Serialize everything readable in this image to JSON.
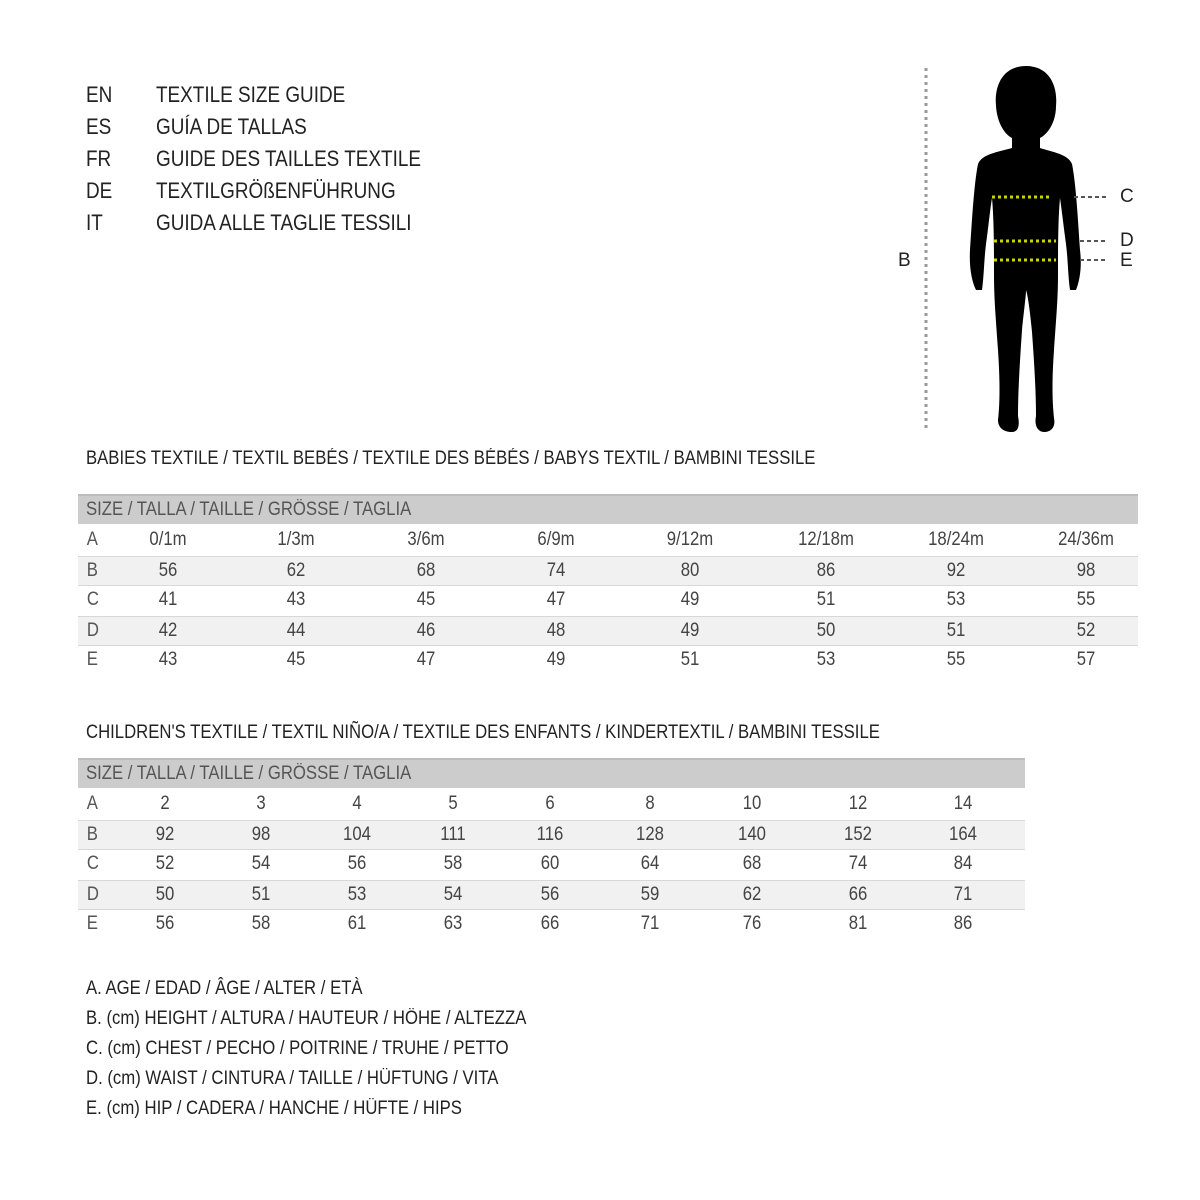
{
  "title_block": [
    {
      "code": "EN",
      "text": "TEXTILE SIZE GUIDE"
    },
    {
      "code": "ES",
      "text": "GUÍA DE TALLAS"
    },
    {
      "code": "FR",
      "text": "GUIDE DES TAILLES TEXTILE"
    },
    {
      "code": "DE",
      "text": "TEXTILGRÖßENFÜHRUNG"
    },
    {
      "code": "IT",
      "text": "GUIDA ALLE TAGLIE TESSILI"
    }
  ],
  "figure": {
    "labels": {
      "b": "B",
      "c": "C",
      "d": "D",
      "e": "E"
    },
    "measure_line_color": "#c8d400"
  },
  "babies": {
    "heading": "BABIES TEXTILE / TEXTIL BEBÉS / TEXTILE DES BÉBÉS / BABYS TEXTIL  / BAMBINI TESSILE",
    "size_header": "SIZE / TALLA / TAILLE / GRÖSSE / TAGLIA",
    "rows": [
      {
        "label": "A",
        "values": [
          "0/1m",
          "1/3m",
          "3/6m",
          "6/9m",
          "9/12m",
          "12/18m",
          "18/24m",
          "24/36m"
        ]
      },
      {
        "label": "B",
        "values": [
          "56",
          "62",
          "68",
          "74",
          "80",
          "86",
          "92",
          "98"
        ]
      },
      {
        "label": "C",
        "values": [
          "41",
          "43",
          "45",
          "47",
          "49",
          "51",
          "53",
          "55"
        ]
      },
      {
        "label": "D",
        "values": [
          "42",
          "44",
          "46",
          "48",
          "49",
          "50",
          "51",
          "52"
        ]
      },
      {
        "label": "E",
        "values": [
          "43",
          "45",
          "47",
          "49",
          "51",
          "53",
          "55",
          "57"
        ]
      }
    ]
  },
  "children": {
    "heading": "CHILDREN'S TEXTILE / TEXTIL NIÑO/A / TEXTILE DES ENFANTS / KINDERTEXTIL / BAMBINI TESSILE",
    "size_header": "SIZE / TALLA / TAILLE / GRÖSSE / TAGLIA",
    "rows": [
      {
        "label": "A",
        "values": [
          "2",
          "3",
          "4",
          "5",
          "6",
          "8",
          "10",
          "12",
          "14"
        ]
      },
      {
        "label": "B",
        "values": [
          "92",
          "98",
          "104",
          "111",
          "116",
          "128",
          "140",
          "152",
          "164"
        ]
      },
      {
        "label": "C",
        "values": [
          "52",
          "54",
          "56",
          "58",
          "60",
          "64",
          "68",
          "74",
          "84"
        ]
      },
      {
        "label": "D",
        "values": [
          "50",
          "51",
          "53",
          "54",
          "56",
          "59",
          "62",
          "66",
          "71"
        ]
      },
      {
        "label": "E",
        "values": [
          "56",
          "58",
          "61",
          "63",
          "66",
          "71",
          "76",
          "81",
          "86"
        ]
      }
    ]
  },
  "legend": [
    "A. AGE / EDAD / ÂGE / ALTER / ETÀ",
    "B. (cm) HEIGHT / ALTURA / HAUTEUR / HÖHE / ALTEZZA",
    "C. (cm) CHEST / PECHO / POITRINE / TRUHE / PETTO",
    "D. (cm) WAIST / CINTURA / TAILLE / HÜFTUNG / VITA",
    "E. (cm) HIP / CADERA / HANCHE / HÜFTE / HIPS"
  ]
}
